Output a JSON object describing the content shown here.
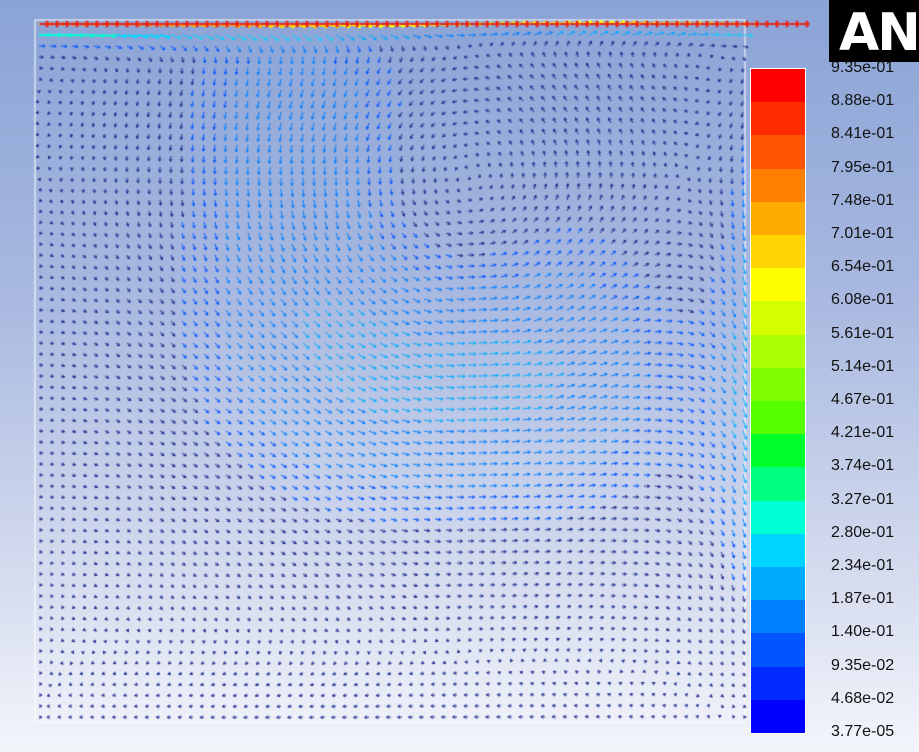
{
  "logo": {
    "text": "AN"
  },
  "chart_data": {
    "type": "vector_field",
    "description_kind": "velocity vectors colored by magnitude",
    "colorbar": {
      "labels": [
        "9.35e-01",
        "8.88e-01",
        "8.41e-01",
        "7.95e-01",
        "7.48e-01",
        "7.01e-01",
        "6.54e-01",
        "6.08e-01",
        "5.61e-01",
        "5.14e-01",
        "4.67e-01",
        "4.21e-01",
        "3.74e-01",
        "3.27e-01",
        "2.80e-01",
        "2.34e-01",
        "1.87e-01",
        "1.40e-01",
        "9.35e-02",
        "4.68e-02",
        "3.77e-05"
      ],
      "colors": [
        "#ff0000",
        "#ff2a00",
        "#ff5500",
        "#ff7f00",
        "#ffaa00",
        "#ffd400",
        "#ffff00",
        "#d4ff00",
        "#aaff00",
        "#7fff00",
        "#55ff00",
        "#00ff2a",
        "#00ff7f",
        "#00ffd4",
        "#00d4ff",
        "#00aaff",
        "#007fff",
        "#0055ff",
        "#002aff",
        "#0000ff"
      ],
      "min": 3.77e-05,
      "max": 0.935
    },
    "domain": {
      "x": [
        0,
        1
      ],
      "y": [
        0,
        1
      ]
    },
    "vortex_center": {
      "x": 0.61,
      "y": 0.78
    }
  }
}
